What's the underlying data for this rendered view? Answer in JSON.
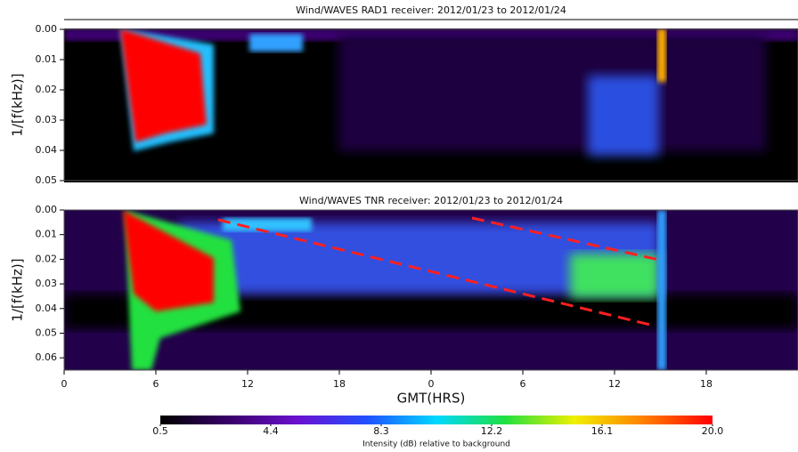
{
  "chart_data": [
    {
      "type": "heatmap",
      "title": "Wind/WAVES RAD1 receiver: 2012/01/23 to 2012/01/24",
      "ylabel": "1/[f(kHz)]",
      "xlim": [
        0,
        48
      ],
      "ylim": [
        0,
        0.05
      ],
      "yticks": [
        {
          "value": 0,
          "label": "0.00"
        },
        0.01,
        0.02,
        0.03,
        0.04,
        0.05
      ]
    },
    {
      "type": "heatmap",
      "title": "Wind/WAVES TNR receiver: 2012/01/23 to 2012/01/24",
      "ylabel": "1/[f(kHz)]",
      "xlabel": "GMT(HRS)",
      "xlim": [
        0,
        48
      ],
      "ylim": [
        0,
        0.065
      ],
      "yticks": [
        {
          "value": 0,
          "label": "0.00"
        },
        0.01,
        0.02,
        0.03,
        0.04,
        0.05,
        0.06
      ],
      "xticks": [
        0,
        6,
        12,
        18,
        {
          "value": 24,
          "label": "0"
        },
        {
          "value": 30,
          "label": "6"
        },
        {
          "value": 36,
          "label": "12"
        },
        {
          "value": 42,
          "label": "18"
        }
      ],
      "colorbar": {
        "label": "Intensity (dB) relative to background",
        "clim": [
          0.5,
          20
        ],
        "ticks": [
          0.5,
          4.4,
          8.3,
          12.2,
          16.1,
          {
            "value": 20,
            "label": "20.0"
          }
        ],
        "colormap": [
          "#000000",
          "#3a006a",
          "#6a10d0",
          "#2050ff",
          "#00d8ff",
          "#20e040",
          "#f0f000",
          "#ff8000",
          "#ff0000"
        ]
      }
    }
  ]
}
